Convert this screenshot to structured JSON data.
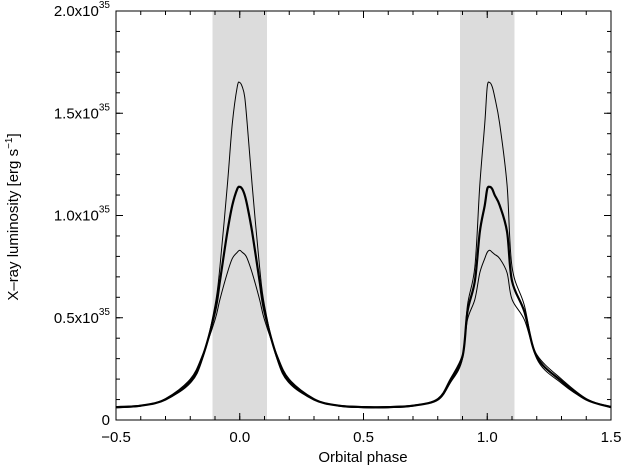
{
  "chart_data": {
    "type": "line",
    "title": "",
    "xlabel": "Orbital phase",
    "ylabel": {
      "main": "X–ray luminosity [erg s",
      "exponent": "−1",
      "close": "]"
    },
    "xlim": [
      -0.5,
      1.5
    ],
    "ylim": [
      0,
      2e+35
    ],
    "x_ticks": [
      {
        "value": -0.5,
        "label": "−0.5"
      },
      {
        "value": 0.0,
        "label": "0.0"
      },
      {
        "value": 0.5,
        "label": "0.5"
      },
      {
        "value": 1.0,
        "label": "1.0"
      },
      {
        "value": 1.5,
        "label": "1.5"
      }
    ],
    "y_ticks": [
      {
        "value": 0,
        "mantissa": "0",
        "exponent": ""
      },
      {
        "value": 5e+34,
        "mantissa": "0.5x10",
        "exponent": "35"
      },
      {
        "value": 1e+35,
        "mantissa": "1.0x10",
        "exponent": "35"
      },
      {
        "value": 1.5e+35,
        "mantissa": "1.5x10",
        "exponent": "35"
      },
      {
        "value": 2e+35,
        "mantissa": "2.0x10",
        "exponent": "35"
      }
    ],
    "shaded_regions": [
      [
        -0.11,
        0.11
      ],
      [
        0.89,
        1.11
      ]
    ],
    "grid": false,
    "legend": "none",
    "colors": {
      "line": "#000000",
      "shade": "#dcdcdc"
    },
    "series": [
      {
        "stroke": "thin",
        "x": [
          -0.5,
          -0.4,
          -0.3,
          -0.2,
          -0.15,
          -0.1,
          -0.08,
          -0.05,
          -0.03,
          -0.01,
          0.0,
          0.01,
          0.02,
          0.03,
          0.05,
          0.08,
          0.1,
          0.15,
          0.2,
          0.3,
          0.4,
          0.5,
          0.55,
          0.6,
          0.7,
          0.8,
          0.85,
          0.9,
          0.92,
          0.95,
          0.97,
          0.99,
          1.0,
          1.01,
          1.02,
          1.03,
          1.05,
          1.08,
          1.1,
          1.15,
          1.2,
          1.3,
          1.4,
          1.5
        ],
        "values": [
          6.6e+33,
          7.2e+33,
          1e+34,
          1.8e+34,
          3e+34,
          5.6e+34,
          7.5e+34,
          1.15e+35,
          1.45e+35,
          1.63e+35,
          1.65e+35,
          1.63e+35,
          1.58e+35,
          1.45e+35,
          1.15e+35,
          7.5e+34,
          5.6e+34,
          3e+34,
          1.8e+34,
          1e+34,
          7.2e+33,
          6.6e+33,
          6.5e+33,
          6.6e+33,
          7.2e+33,
          1e+34,
          1.8e+34,
          3e+34,
          5.6e+34,
          7.5e+34,
          1.15e+35,
          1.45e+35,
          1.63e+35,
          1.65e+35,
          1.63e+35,
          1.58e+35,
          1.45e+35,
          1.15e+35,
          7.5e+34,
          5.6e+34,
          3e+34,
          1.8e+34,
          1e+34,
          6.6e+33
        ],
        "name": ""
      },
      {
        "stroke": "thick",
        "x": [
          -0.5,
          -0.4,
          -0.3,
          -0.2,
          -0.15,
          -0.1,
          -0.08,
          -0.05,
          -0.03,
          -0.01,
          0.0,
          0.01,
          0.02,
          0.03,
          0.05,
          0.08,
          0.1,
          0.15,
          0.2,
          0.3,
          0.4,
          0.5,
          0.55,
          0.6,
          0.7,
          0.8,
          0.85,
          0.9,
          0.92,
          0.95,
          0.97,
          0.99,
          1.0,
          1.01,
          1.02,
          1.03,
          1.05,
          1.08,
          1.1,
          1.15,
          1.2,
          1.3,
          1.4,
          1.5
        ],
        "values": [
          6.3e+33,
          7e+33,
          1e+34,
          1.9e+34,
          3.1e+34,
          5.3e+34,
          6.8e+34,
          9.2e+34,
          1.05e+35,
          1.13e+35,
          1.14e+35,
          1.13e+35,
          1.1e+35,
          1.05e+35,
          9.2e+34,
          6.8e+34,
          5.3e+34,
          3.1e+34,
          1.9e+34,
          1e+34,
          7e+33,
          6.3e+33,
          6.2e+33,
          6.3e+33,
          7e+33,
          1e+34,
          1.9e+34,
          3.1e+34,
          5.3e+34,
          6.8e+34,
          9.2e+34,
          1.05e+35,
          1.13e+35,
          1.14e+35,
          1.13e+35,
          1.1e+35,
          1.05e+35,
          9.2e+34,
          6.8e+34,
          5.3e+34,
          3.1e+34,
          1.9e+34,
          1e+34,
          6.3e+33
        ],
        "name": ""
      },
      {
        "stroke": "thin",
        "x": [
          -0.5,
          -0.4,
          -0.3,
          -0.2,
          -0.15,
          -0.1,
          -0.08,
          -0.05,
          -0.03,
          -0.01,
          0.0,
          0.01,
          0.02,
          0.03,
          0.05,
          0.08,
          0.1,
          0.15,
          0.2,
          0.3,
          0.4,
          0.5,
          0.55,
          0.6,
          0.7,
          0.8,
          0.85,
          0.9,
          0.92,
          0.95,
          0.97,
          0.99,
          1.0,
          1.01,
          1.02,
          1.03,
          1.05,
          1.08,
          1.1,
          1.15,
          1.2,
          1.3,
          1.4,
          1.5
        ],
        "values": [
          6e+33,
          6.8e+33,
          1.05e+34,
          2e+34,
          3.2e+34,
          4.9e+34,
          5.9e+34,
          7.2e+34,
          7.9e+34,
          8.2e+34,
          8.3e+34,
          8.2e+34,
          8.1e+34,
          7.9e+34,
          7.2e+34,
          5.9e+34,
          4.9e+34,
          3.2e+34,
          2e+34,
          1.05e+34,
          6.8e+33,
          6e+33,
          5.9e+33,
          6e+33,
          6.8e+33,
          1.05e+34,
          2e+34,
          3.2e+34,
          4.9e+34,
          5.9e+34,
          7.2e+34,
          7.9e+34,
          8.2e+34,
          8.3e+34,
          8.2e+34,
          8.1e+34,
          7.9e+34,
          7.2e+34,
          5.9e+34,
          4.9e+34,
          3.2e+34,
          2e+34,
          1.05e+34,
          6e+33
        ],
        "name": ""
      }
    ]
  }
}
